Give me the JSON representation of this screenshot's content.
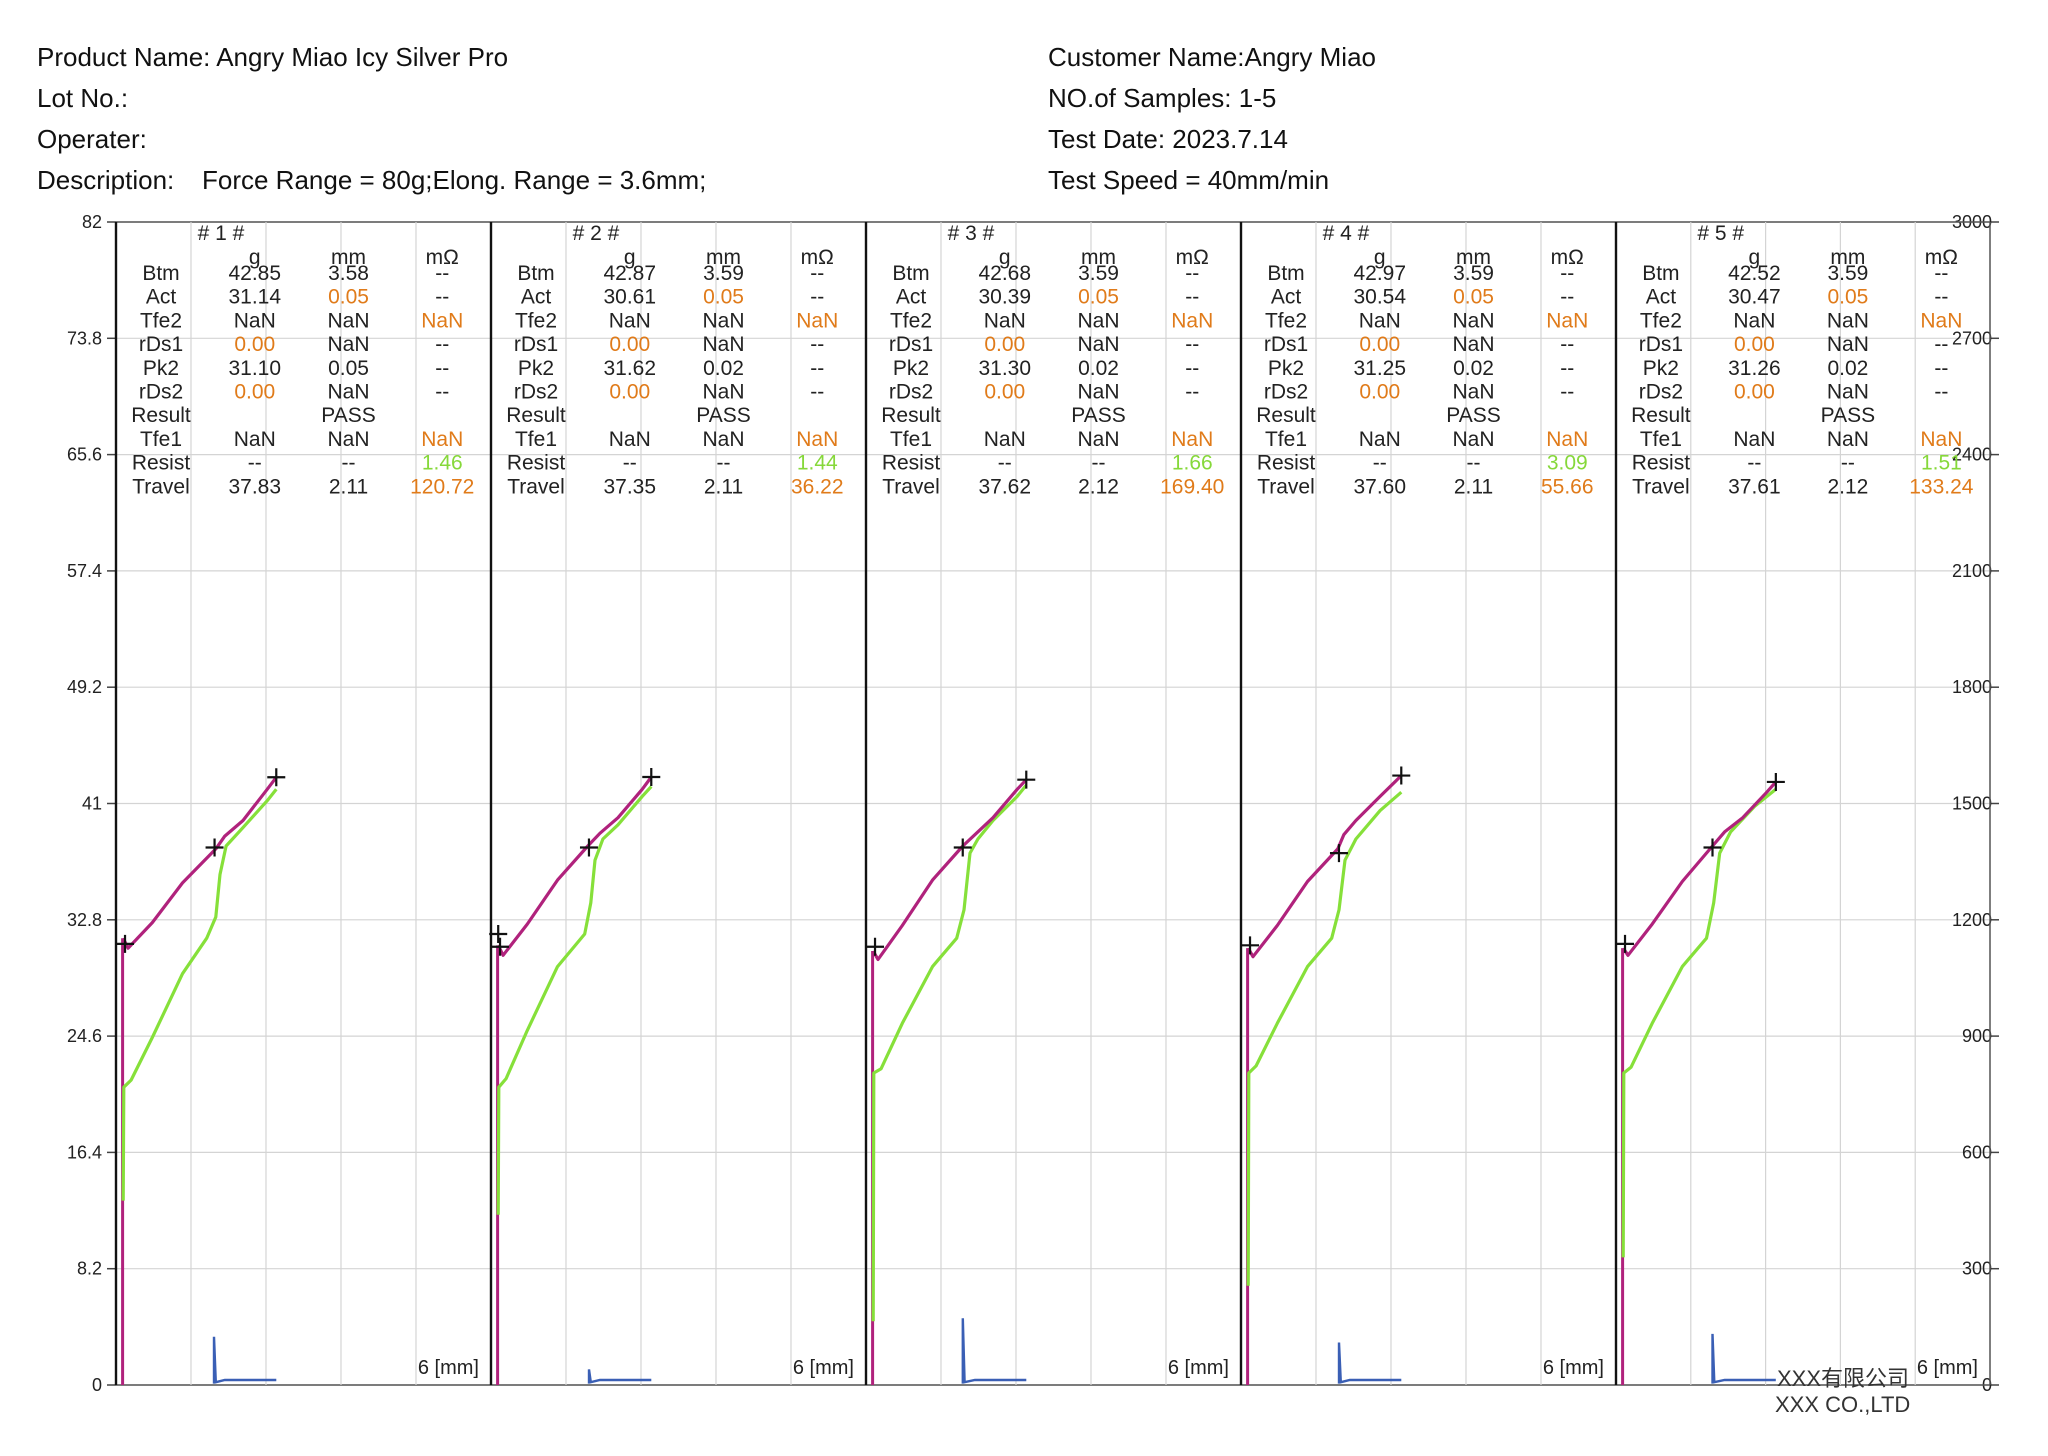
{
  "header": {
    "product": "Product Name: Angry Miao Icy Silver Pro",
    "lot": "Lot No.:",
    "operator": "Operater:",
    "description_label": "Description:",
    "description": "Force Range = 80g;Elong. Range = 3.6mm;",
    "customer": "Customer Name:Angry Miao",
    "samples": "NO.of Samples: 1-5",
    "test_date": "Test Date: 2023.7.14",
    "test_speed": "Test Speed = 40mm/min"
  },
  "footer": {
    "company_cn": "XXX有限公司",
    "company_en": "XXX CO.,LTD"
  },
  "colors": {
    "press": "#b0227c",
    "release": "#86e03a",
    "contact": "#3a5fb5",
    "orange": "#e07b1a",
    "green": "#86d83a",
    "grid": "#d4d4d4"
  },
  "chart_data": {
    "type": "line",
    "left_axis": {
      "ticks": [
        "82",
        "73.8",
        "65.6",
        "57.4",
        "49.2",
        "41",
        "32.8",
        "24.6",
        "16.4",
        "8.2",
        "0"
      ],
      "ylim": [
        0,
        82
      ]
    },
    "right_axis": {
      "ticks": [
        "3000",
        "2700",
        "2400",
        "2100",
        "1800",
        "1500",
        "1200",
        "900",
        "600",
        "300",
        "0"
      ],
      "ylim": [
        0,
        3000
      ]
    },
    "x_unit_label": "6 [mm]",
    "column_headers": [
      "g",
      "mm",
      "mΩ"
    ],
    "row_labels": [
      "Btm",
      "Act",
      "Tfe2",
      "rDs1",
      "Pk2",
      "rDs2",
      "Result",
      "Tfe1",
      "Resist",
      "Travel"
    ],
    "samples": [
      {
        "title": "# 1 #",
        "rows": [
          [
            "42.85",
            "3.58",
            "--"
          ],
          [
            "31.14",
            "0.05",
            "--"
          ],
          [
            "NaN",
            "NaN",
            "NaN"
          ],
          [
            "0.00",
            "NaN",
            "--"
          ],
          [
            "31.10",
            "0.05",
            "--"
          ],
          [
            "0.00",
            "NaN",
            "--"
          ],
          [
            "",
            "PASS",
            ""
          ],
          [
            "NaN",
            "NaN",
            "NaN"
          ],
          [
            "--",
            "--",
            "1.46"
          ],
          [
            "37.83",
            "2.11",
            "120.72"
          ]
        ],
        "press_curve": [
          [
            0.02,
            31.5
          ],
          [
            0.1,
            30.8
          ],
          [
            0.5,
            32.6
          ],
          [
            1.0,
            35.4
          ],
          [
            1.55,
            37.8
          ],
          [
            1.7,
            38.7
          ],
          [
            2.0,
            39.8
          ],
          [
            2.4,
            42.0
          ],
          [
            2.55,
            42.85
          ]
        ],
        "release_curve": [
          [
            0.02,
            13.0
          ],
          [
            0.03,
            21.0
          ],
          [
            0.15,
            21.5
          ],
          [
            0.5,
            24.5
          ],
          [
            1.0,
            29.0
          ],
          [
            1.4,
            31.5
          ],
          [
            1.55,
            33.0
          ],
          [
            1.62,
            36.0
          ],
          [
            1.72,
            38.0
          ],
          [
            2.0,
            39.3
          ],
          [
            2.4,
            41.2
          ],
          [
            2.55,
            42.0
          ]
        ],
        "markers": [
          [
            0.05,
            31.1
          ],
          [
            1.53,
            37.9
          ],
          [
            2.55,
            42.85
          ]
        ],
        "contact": [
          [
            1.52,
            0.1
          ],
          [
            1.52,
            3.4
          ],
          [
            1.55,
            0.2
          ],
          [
            1.7,
            0.35
          ],
          [
            2.55,
            0.35
          ]
        ]
      },
      {
        "title": "# 2 #",
        "rows": [
          [
            "42.87",
            "3.59",
            "--"
          ],
          [
            "30.61",
            "0.05",
            "--"
          ],
          [
            "NaN",
            "NaN",
            "NaN"
          ],
          [
            "0.00",
            "NaN",
            "--"
          ],
          [
            "31.62",
            "0.02",
            "--"
          ],
          [
            "0.00",
            "NaN",
            "--"
          ],
          [
            "",
            "PASS",
            ""
          ],
          [
            "NaN",
            "NaN",
            "NaN"
          ],
          [
            "--",
            "--",
            "1.44"
          ],
          [
            "37.35",
            "2.11",
            "36.22"
          ]
        ],
        "press_curve": [
          [
            0.02,
            31.0
          ],
          [
            0.1,
            30.3
          ],
          [
            0.5,
            32.5
          ],
          [
            1.0,
            35.6
          ],
          [
            1.5,
            38.0
          ],
          [
            1.7,
            38.9
          ],
          [
            2.0,
            40.0
          ],
          [
            2.4,
            42.0
          ],
          [
            2.55,
            42.87
          ]
        ],
        "release_curve": [
          [
            0.02,
            12.0
          ],
          [
            0.03,
            21.0
          ],
          [
            0.15,
            21.6
          ],
          [
            0.5,
            25.0
          ],
          [
            1.0,
            29.5
          ],
          [
            1.45,
            31.8
          ],
          [
            1.55,
            34.0
          ],
          [
            1.62,
            37.0
          ],
          [
            1.75,
            38.5
          ],
          [
            2.0,
            39.5
          ],
          [
            2.4,
            41.5
          ],
          [
            2.55,
            42.2
          ]
        ],
        "markers": [
          [
            0.02,
            31.8
          ],
          [
            0.05,
            30.9
          ],
          [
            1.52,
            37.9
          ],
          [
            2.55,
            42.87
          ]
        ],
        "contact": [
          [
            1.52,
            0.1
          ],
          [
            1.52,
            1.1
          ],
          [
            1.55,
            0.2
          ],
          [
            1.7,
            0.35
          ],
          [
            2.55,
            0.35
          ]
        ]
      },
      {
        "title": "# 3 #",
        "rows": [
          [
            "42.68",
            "3.59",
            "--"
          ],
          [
            "30.39",
            "0.05",
            "--"
          ],
          [
            "NaN",
            "NaN",
            "NaN"
          ],
          [
            "0.00",
            "NaN",
            "--"
          ],
          [
            "31.30",
            "0.02",
            "--"
          ],
          [
            "0.00",
            "NaN",
            "--"
          ],
          [
            "",
            "PASS",
            ""
          ],
          [
            "NaN",
            "NaN",
            "NaN"
          ],
          [
            "--",
            "--",
            "1.66"
          ],
          [
            "37.62",
            "2.12",
            "169.40"
          ]
        ],
        "press_curve": [
          [
            0.02,
            30.6
          ],
          [
            0.1,
            30.0
          ],
          [
            0.5,
            32.4
          ],
          [
            1.0,
            35.6
          ],
          [
            1.5,
            38.0
          ],
          [
            1.7,
            38.8
          ],
          [
            2.0,
            40.0
          ],
          [
            2.4,
            42.0
          ],
          [
            2.55,
            42.68
          ]
        ],
        "release_curve": [
          [
            0.02,
            4.5
          ],
          [
            0.03,
            22.0
          ],
          [
            0.15,
            22.3
          ],
          [
            0.5,
            25.5
          ],
          [
            1.0,
            29.5
          ],
          [
            1.4,
            31.5
          ],
          [
            1.52,
            33.5
          ],
          [
            1.62,
            37.5
          ],
          [
            1.75,
            38.5
          ],
          [
            2.0,
            39.8
          ],
          [
            2.4,
            41.5
          ],
          [
            2.55,
            42.3
          ]
        ],
        "markers": [
          [
            0.05,
            30.9
          ],
          [
            1.5,
            37.9
          ],
          [
            2.55,
            42.68
          ]
        ],
        "contact": [
          [
            1.5,
            0.1
          ],
          [
            1.5,
            4.7
          ],
          [
            1.53,
            0.2
          ],
          [
            1.7,
            0.35
          ],
          [
            2.55,
            0.35
          ]
        ]
      },
      {
        "title": "# 4 #",
        "rows": [
          [
            "42.97",
            "3.59",
            "--"
          ],
          [
            "30.54",
            "0.05",
            "--"
          ],
          [
            "NaN",
            "NaN",
            "NaN"
          ],
          [
            "0.00",
            "NaN",
            "--"
          ],
          [
            "31.25",
            "0.02",
            "--"
          ],
          [
            "0.00",
            "NaN",
            "--"
          ],
          [
            "",
            "PASS",
            ""
          ],
          [
            "NaN",
            "NaN",
            "NaN"
          ],
          [
            "--",
            "--",
            "3.09"
          ],
          [
            "37.60",
            "2.11",
            "55.66"
          ]
        ],
        "press_curve": [
          [
            0.02,
            30.8
          ],
          [
            0.1,
            30.2
          ],
          [
            0.5,
            32.4
          ],
          [
            1.0,
            35.5
          ],
          [
            1.5,
            37.8
          ],
          [
            1.6,
            38.8
          ],
          [
            1.8,
            39.8
          ],
          [
            2.2,
            41.5
          ],
          [
            2.55,
            42.97
          ]
        ],
        "release_curve": [
          [
            0.02,
            7.0
          ],
          [
            0.03,
            22.0
          ],
          [
            0.15,
            22.5
          ],
          [
            0.5,
            25.5
          ],
          [
            1.0,
            29.5
          ],
          [
            1.4,
            31.5
          ],
          [
            1.52,
            33.5
          ],
          [
            1.62,
            37.0
          ],
          [
            1.8,
            38.5
          ],
          [
            2.2,
            40.5
          ],
          [
            2.55,
            41.8
          ]
        ],
        "markers": [
          [
            0.05,
            31.0
          ],
          [
            1.52,
            37.5
          ],
          [
            2.55,
            42.97
          ]
        ],
        "contact": [
          [
            1.52,
            0.1
          ],
          [
            1.52,
            3.0
          ],
          [
            1.55,
            0.2
          ],
          [
            1.7,
            0.35
          ],
          [
            2.55,
            0.35
          ]
        ]
      },
      {
        "title": "# 5 #",
        "rows": [
          [
            "42.52",
            "3.59",
            "--"
          ],
          [
            "30.47",
            "0.05",
            "--"
          ],
          [
            "NaN",
            "NaN",
            "NaN"
          ],
          [
            "0.00",
            "NaN",
            "--"
          ],
          [
            "31.26",
            "0.02",
            "--"
          ],
          [
            "0.00",
            "NaN",
            "--"
          ],
          [
            "",
            "PASS",
            ""
          ],
          [
            "NaN",
            "NaN",
            "NaN"
          ],
          [
            "--",
            "--",
            "1.51"
          ],
          [
            "37.61",
            "2.12",
            "133.24"
          ]
        ],
        "press_curve": [
          [
            0.02,
            30.8
          ],
          [
            0.1,
            30.3
          ],
          [
            0.5,
            32.5
          ],
          [
            1.0,
            35.5
          ],
          [
            1.5,
            38.0
          ],
          [
            1.7,
            39.0
          ],
          [
            2.0,
            40.0
          ],
          [
            2.4,
            41.8
          ],
          [
            2.55,
            42.52
          ]
        ],
        "release_curve": [
          [
            0.02,
            9.0
          ],
          [
            0.03,
            22.0
          ],
          [
            0.15,
            22.4
          ],
          [
            0.5,
            25.5
          ],
          [
            1.0,
            29.5
          ],
          [
            1.4,
            31.5
          ],
          [
            1.52,
            34.0
          ],
          [
            1.62,
            37.5
          ],
          [
            1.8,
            39.0
          ],
          [
            2.2,
            40.8
          ],
          [
            2.55,
            42.0
          ]
        ],
        "markers": [
          [
            0.05,
            31.1
          ],
          [
            1.5,
            37.9
          ],
          [
            2.55,
            42.52
          ]
        ],
        "contact": [
          [
            1.5,
            0.1
          ],
          [
            1.5,
            3.6
          ],
          [
            1.53,
            0.2
          ],
          [
            1.7,
            0.35
          ],
          [
            2.55,
            0.35
          ]
        ]
      }
    ]
  }
}
